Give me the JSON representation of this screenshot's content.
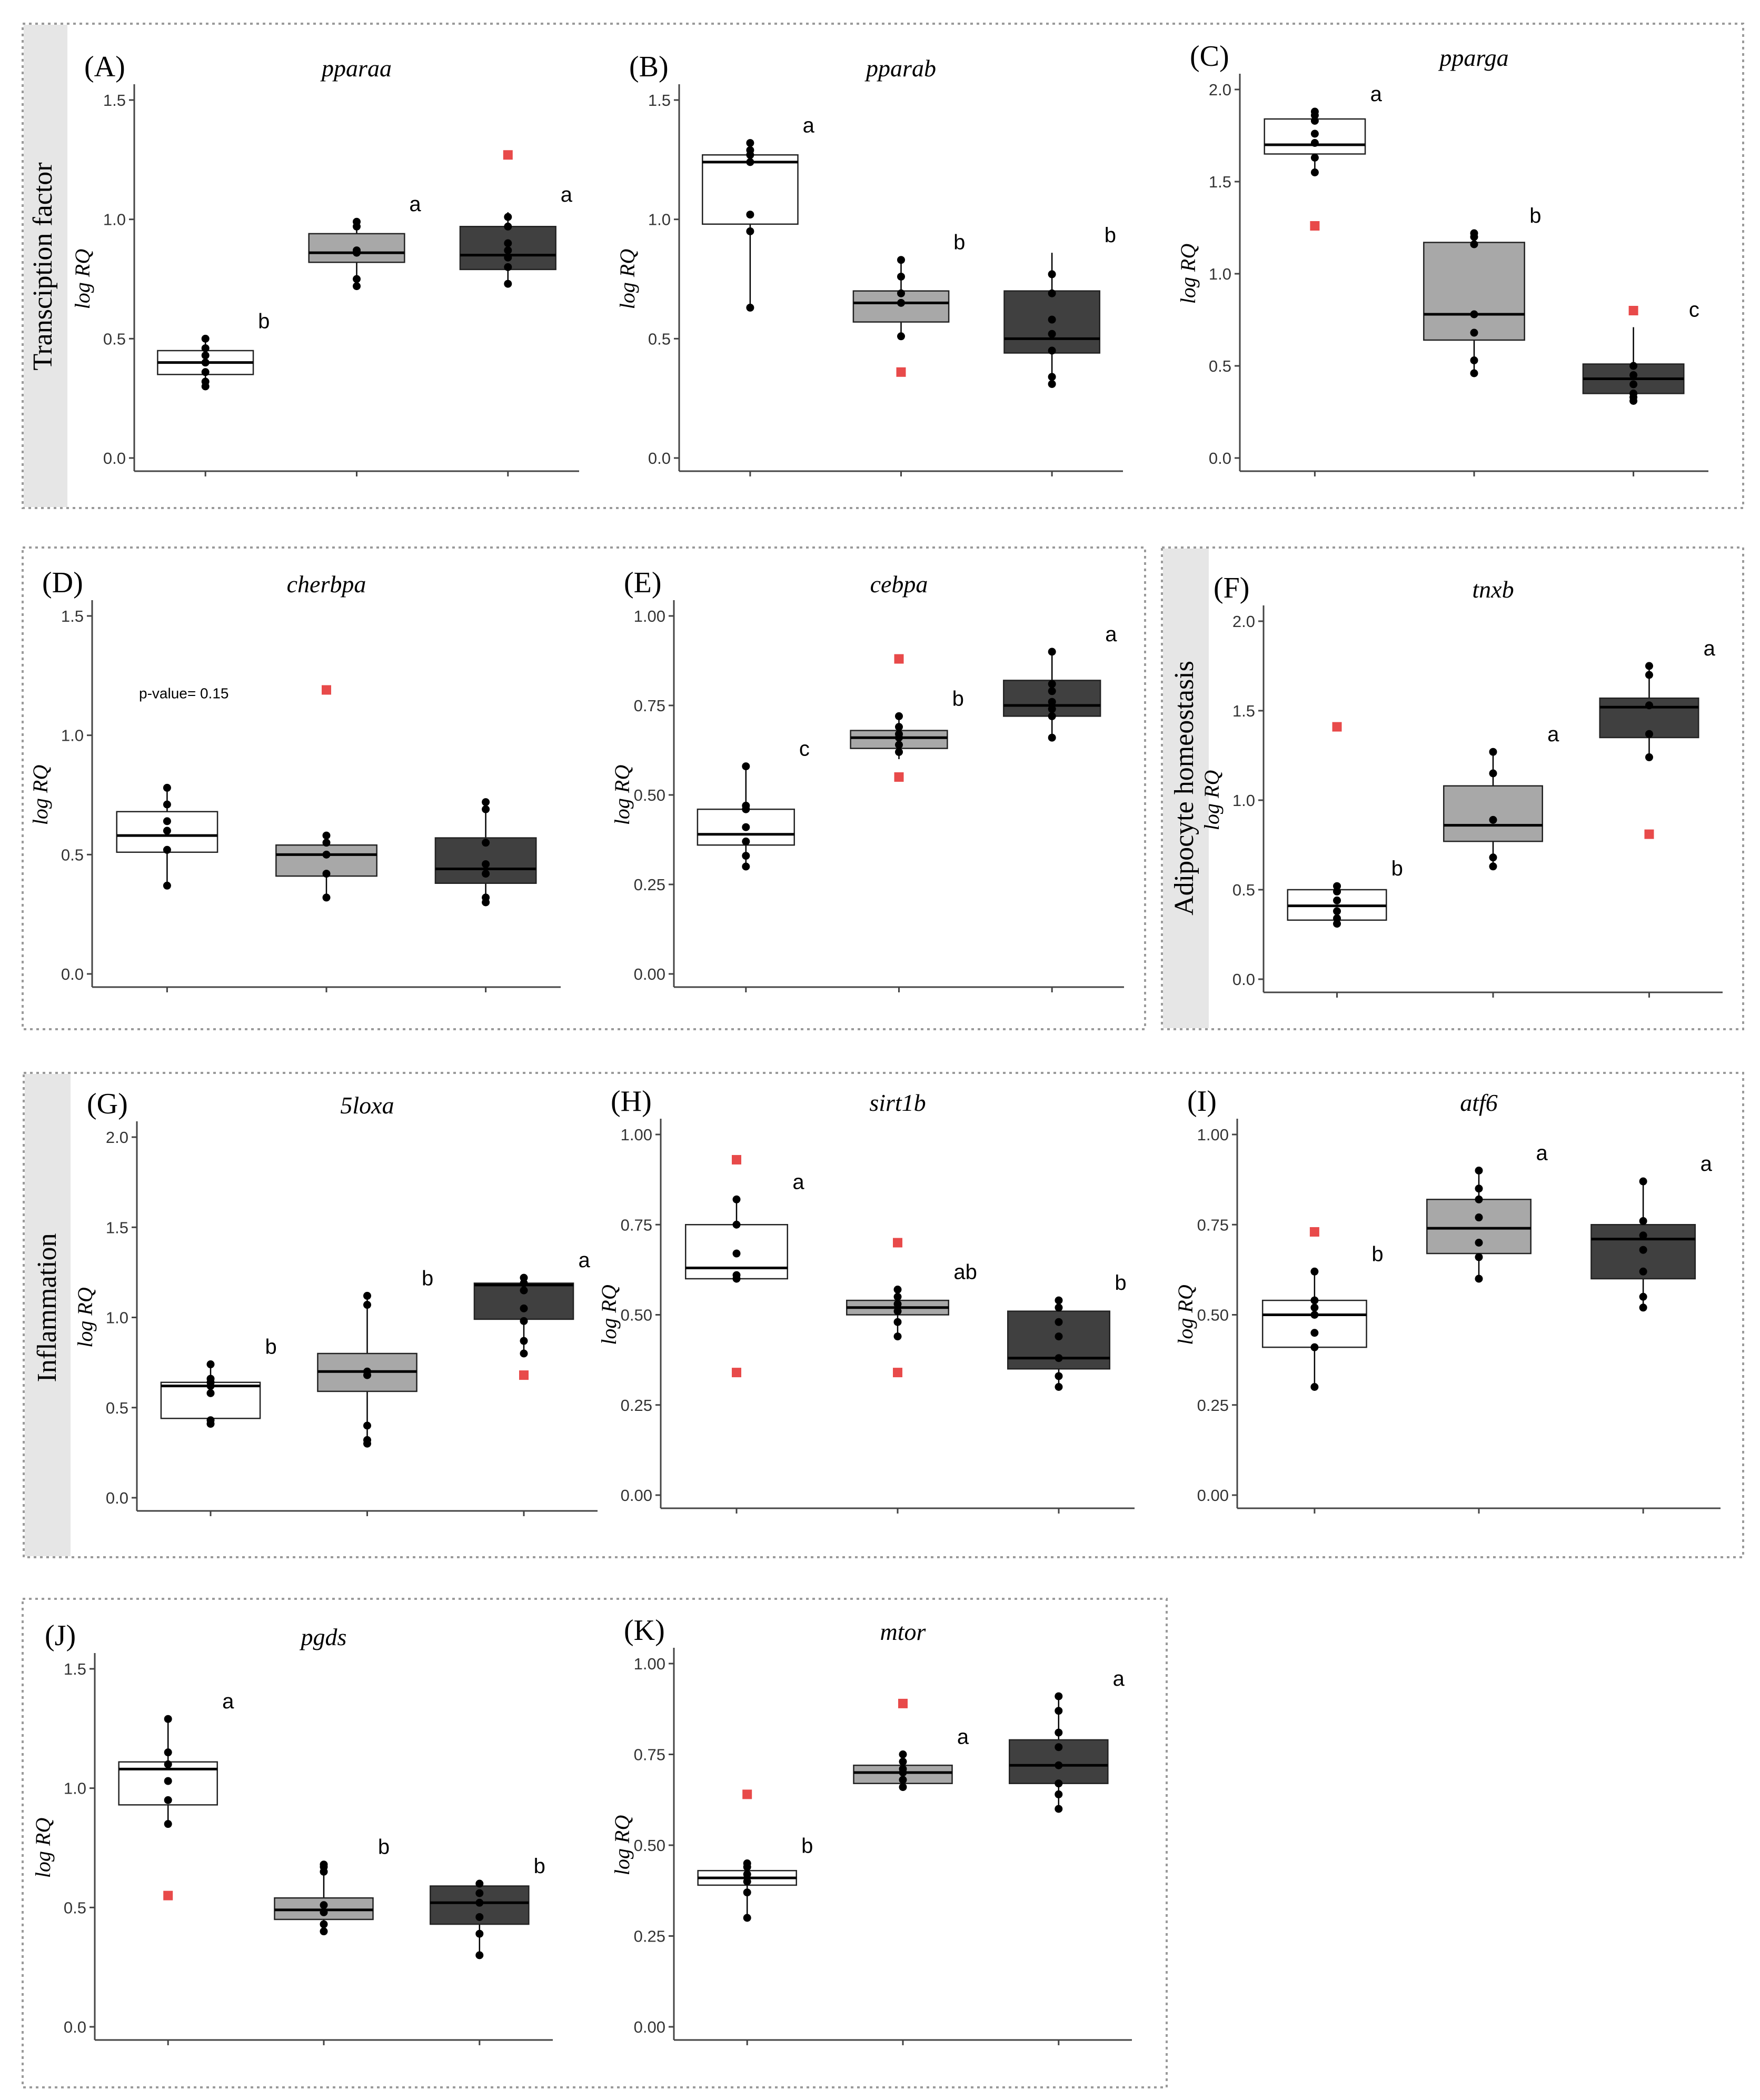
{
  "figure": {
    "groups": [
      {
        "id": "transcription",
        "label": "Transciption factor"
      },
      {
        "id": "adipocyte",
        "label": "Adipocyte homeostasis"
      },
      {
        "id": "inflammation",
        "label": "Inflammation"
      }
    ],
    "colors": {
      "box_fills": [
        "#ffffff",
        "#a8a8a8",
        "#404040"
      ],
      "outlier": "#e84a4a",
      "point": "#000000",
      "group_band": "#e6e6e6"
    }
  },
  "chart_data": [
    {
      "id": "A",
      "label": "(A)",
      "gene": "pparaa",
      "type": "boxplot",
      "ylabel": "log RQ",
      "ylim": [
        0,
        1.5
      ],
      "yticks": [
        "0.0",
        "0.5",
        "1.0",
        "1.5"
      ],
      "series": [
        {
          "q1": 0.35,
          "median": 0.4,
          "q3": 0.45,
          "wmin": 0.3,
          "wmax": 0.5,
          "points": [
            0.3,
            0.32,
            0.36,
            0.4,
            0.43,
            0.46,
            0.5
          ],
          "outliers": [],
          "letter": "b"
        },
        {
          "q1": 0.82,
          "median": 0.86,
          "q3": 0.94,
          "wmin": 0.72,
          "wmax": 0.99,
          "points": [
            0.72,
            0.75,
            0.86,
            0.87,
            0.97,
            0.99
          ],
          "outliers": [],
          "letter": "a"
        },
        {
          "q1": 0.79,
          "median": 0.85,
          "q3": 0.97,
          "wmin": 0.73,
          "wmax": 1.03,
          "points": [
            0.73,
            0.8,
            0.84,
            0.87,
            0.9,
            0.97,
            1.01
          ],
          "outliers": [
            1.27
          ],
          "letter": "a"
        }
      ]
    },
    {
      "id": "B",
      "label": "(B)",
      "gene": "pparab",
      "type": "boxplot",
      "ylabel": "log RQ",
      "ylim": [
        0,
        1.5
      ],
      "yticks": [
        "0.0",
        "0.5",
        "1.0",
        "1.5"
      ],
      "series": [
        {
          "q1": 0.98,
          "median": 1.24,
          "q3": 1.27,
          "wmin": 0.63,
          "wmax": 1.32,
          "points": [
            0.63,
            0.95,
            1.02,
            1.24,
            1.27,
            1.29,
            1.32
          ],
          "outliers": [],
          "letter": "a"
        },
        {
          "q1": 0.57,
          "median": 0.65,
          "q3": 0.7,
          "wmin": 0.51,
          "wmax": 0.83,
          "points": [
            0.51,
            0.65,
            0.69,
            0.76,
            0.83
          ],
          "outliers": [
            0.36
          ],
          "letter": "b"
        },
        {
          "q1": 0.44,
          "median": 0.5,
          "q3": 0.7,
          "wmin": 0.31,
          "wmax": 0.86,
          "points": [
            0.31,
            0.34,
            0.45,
            0.52,
            0.58,
            0.69,
            0.77
          ],
          "outliers": [],
          "letter": "b"
        }
      ]
    },
    {
      "id": "C",
      "label": "(C)",
      "gene": "pparga",
      "type": "boxplot",
      "ylabel": "log RQ",
      "ylim": [
        0,
        2.0
      ],
      "yticks": [
        "0.0",
        "0.5",
        "1.0",
        "1.5",
        "2.0"
      ],
      "series": [
        {
          "q1": 1.65,
          "median": 1.7,
          "q3": 1.84,
          "wmin": 1.55,
          "wmax": 1.88,
          "points": [
            1.55,
            1.63,
            1.71,
            1.76,
            1.83,
            1.86,
            1.88
          ],
          "outliers": [
            1.26
          ],
          "letter": "a"
        },
        {
          "q1": 0.64,
          "median": 0.78,
          "q3": 1.17,
          "wmin": 0.46,
          "wmax": 1.22,
          "points": [
            0.46,
            0.53,
            0.68,
            0.78,
            1.16,
            1.2,
            1.22
          ],
          "outliers": [],
          "letter": "b"
        },
        {
          "q1": 0.35,
          "median": 0.43,
          "q3": 0.51,
          "wmin": 0.31,
          "wmax": 0.71,
          "points": [
            0.31,
            0.33,
            0.35,
            0.4,
            0.45,
            0.5
          ],
          "outliers": [
            0.8
          ],
          "letter": "c"
        }
      ]
    },
    {
      "id": "D",
      "label": "(D)",
      "gene": "cherbpa",
      "type": "boxplot",
      "ylabel": "log RQ",
      "ylim": [
        0,
        1.5
      ],
      "yticks": [
        "0.0",
        "0.5",
        "1.0",
        "1.5"
      ],
      "annotation": "p-value= 0.15",
      "series": [
        {
          "q1": 0.51,
          "median": 0.58,
          "q3": 0.68,
          "wmin": 0.37,
          "wmax": 0.78,
          "points": [
            0.37,
            0.52,
            0.6,
            0.64,
            0.71,
            0.78
          ],
          "outliers": [],
          "letter": ""
        },
        {
          "q1": 0.41,
          "median": 0.5,
          "q3": 0.54,
          "wmin": 0.32,
          "wmax": 0.58,
          "points": [
            0.32,
            0.42,
            0.5,
            0.55,
            0.58
          ],
          "outliers": [
            1.19
          ],
          "letter": ""
        },
        {
          "q1": 0.38,
          "median": 0.44,
          "q3": 0.57,
          "wmin": 0.3,
          "wmax": 0.72,
          "points": [
            0.3,
            0.32,
            0.42,
            0.46,
            0.55,
            0.69,
            0.72
          ],
          "outliers": [],
          "letter": ""
        }
      ]
    },
    {
      "id": "E",
      "label": "(E)",
      "gene": "cebpa",
      "type": "boxplot",
      "ylabel": "log RQ",
      "ylim": [
        0,
        1.0
      ],
      "yticks": [
        "0.00",
        "0.25",
        "0.50",
        "0.75",
        "1.00"
      ],
      "series": [
        {
          "q1": 0.36,
          "median": 0.39,
          "q3": 0.46,
          "wmin": 0.3,
          "wmax": 0.58,
          "points": [
            0.3,
            0.33,
            0.37,
            0.41,
            0.46,
            0.47,
            0.58
          ],
          "outliers": [],
          "letter": "c"
        },
        {
          "q1": 0.63,
          "median": 0.66,
          "q3": 0.68,
          "wmin": 0.6,
          "wmax": 0.72,
          "points": [
            0.62,
            0.64,
            0.66,
            0.67,
            0.69,
            0.72
          ],
          "outliers": [
            0.88,
            0.55
          ],
          "letter": "b"
        },
        {
          "q1": 0.72,
          "median": 0.75,
          "q3": 0.82,
          "wmin": 0.66,
          "wmax": 0.9,
          "points": [
            0.66,
            0.72,
            0.74,
            0.76,
            0.79,
            0.81,
            0.9
          ],
          "outliers": [],
          "letter": "a"
        }
      ]
    },
    {
      "id": "F",
      "label": "(F)",
      "gene": "tnxb",
      "type": "boxplot",
      "ylabel": "log RQ",
      "ylim": [
        0,
        2.0
      ],
      "yticks": [
        "0.0",
        "0.5",
        "1.0",
        "1.5",
        "2.0"
      ],
      "series": [
        {
          "q1": 0.33,
          "median": 0.41,
          "q3": 0.5,
          "wmin": 0.31,
          "wmax": 0.52,
          "points": [
            0.31,
            0.34,
            0.38,
            0.44,
            0.49,
            0.52
          ],
          "outliers": [
            1.41
          ],
          "letter": "b"
        },
        {
          "q1": 0.77,
          "median": 0.86,
          "q3": 1.08,
          "wmin": 0.63,
          "wmax": 1.27,
          "points": [
            0.63,
            0.68,
            0.89,
            1.15,
            1.27
          ],
          "outliers": [],
          "letter": "a"
        },
        {
          "q1": 1.35,
          "median": 1.52,
          "q3": 1.57,
          "wmin": 1.24,
          "wmax": 1.75,
          "points": [
            1.24,
            1.37,
            1.53,
            1.7,
            1.75
          ],
          "outliers": [
            0.81
          ],
          "letter": "a"
        }
      ]
    },
    {
      "id": "G",
      "label": "(G)",
      "gene": "5loxa",
      "type": "boxplot",
      "ylabel": "log RQ",
      "ylim": [
        0,
        2.0
      ],
      "yticks": [
        "0.0",
        "0.5",
        "1.0",
        "1.5",
        "2.0"
      ],
      "series": [
        {
          "q1": 0.44,
          "median": 0.62,
          "q3": 0.64,
          "wmin": 0.41,
          "wmax": 0.74,
          "points": [
            0.41,
            0.43,
            0.58,
            0.62,
            0.64,
            0.66,
            0.74
          ],
          "outliers": [],
          "letter": "b"
        },
        {
          "q1": 0.59,
          "median": 0.7,
          "q3": 0.8,
          "wmin": 0.3,
          "wmax": 1.12,
          "points": [
            0.3,
            0.32,
            0.4,
            0.68,
            0.7,
            1.07,
            1.12
          ],
          "outliers": [],
          "letter": "b"
        },
        {
          "q1": 0.99,
          "median": 1.18,
          "q3": 1.19,
          "wmin": 0.8,
          "wmax": 1.22,
          "points": [
            0.8,
            0.87,
            0.98,
            1.05,
            1.15,
            1.19,
            1.22
          ],
          "outliers": [
            0.68
          ],
          "letter": "a"
        }
      ]
    },
    {
      "id": "H",
      "label": "(H)",
      "gene": "sirt1b",
      "type": "boxplot",
      "ylabel": "log RQ",
      "ylim": [
        0,
        1.0
      ],
      "yticks": [
        "0.00",
        "0.25",
        "0.50",
        "0.75",
        "1.00"
      ],
      "series": [
        {
          "q1": 0.6,
          "median": 0.63,
          "q3": 0.75,
          "wmin": 0.59,
          "wmax": 0.82,
          "points": [
            0.6,
            0.61,
            0.67,
            0.75,
            0.82
          ],
          "outliers": [
            0.93,
            0.34
          ],
          "letter": "a"
        },
        {
          "q1": 0.5,
          "median": 0.52,
          "q3": 0.54,
          "wmin": 0.44,
          "wmax": 0.57,
          "points": [
            0.44,
            0.48,
            0.51,
            0.53,
            0.55,
            0.57
          ],
          "outliers": [
            0.7,
            0.34
          ],
          "letter": "ab"
        },
        {
          "q1": 0.35,
          "median": 0.38,
          "q3": 0.51,
          "wmin": 0.3,
          "wmax": 0.54,
          "points": [
            0.3,
            0.33,
            0.38,
            0.44,
            0.48,
            0.52,
            0.54
          ],
          "outliers": [],
          "letter": "b"
        }
      ]
    },
    {
      "id": "I",
      "label": "(I)",
      "gene": "atf6",
      "type": "boxplot",
      "ylabel": "log RQ",
      "ylim": [
        0,
        1.0
      ],
      "yticks": [
        "0.00",
        "0.25",
        "0.50",
        "0.75",
        "1.00"
      ],
      "series": [
        {
          "q1": 0.41,
          "median": 0.5,
          "q3": 0.54,
          "wmin": 0.3,
          "wmax": 0.62,
          "points": [
            0.3,
            0.41,
            0.45,
            0.5,
            0.52,
            0.54,
            0.62
          ],
          "outliers": [
            0.73
          ],
          "letter": "b"
        },
        {
          "q1": 0.67,
          "median": 0.74,
          "q3": 0.82,
          "wmin": 0.6,
          "wmax": 0.9,
          "points": [
            0.6,
            0.66,
            0.7,
            0.77,
            0.82,
            0.85,
            0.9
          ],
          "outliers": [],
          "letter": "a"
        },
        {
          "q1": 0.6,
          "median": 0.71,
          "q3": 0.75,
          "wmin": 0.52,
          "wmax": 0.87,
          "points": [
            0.52,
            0.55,
            0.62,
            0.68,
            0.72,
            0.76,
            0.87
          ],
          "outliers": [],
          "letter": "a"
        }
      ]
    },
    {
      "id": "J",
      "label": "(J)",
      "gene": "pgds",
      "type": "boxplot",
      "ylabel": "log RQ",
      "ylim": [
        0,
        1.5
      ],
      "yticks": [
        "0.0",
        "0.5",
        "1.0",
        "1.5"
      ],
      "series": [
        {
          "q1": 0.93,
          "median": 1.08,
          "q3": 1.11,
          "wmin": 0.85,
          "wmax": 1.29,
          "points": [
            0.85,
            0.95,
            1.03,
            1.1,
            1.15,
            1.29
          ],
          "outliers": [
            0.55
          ],
          "letter": "a"
        },
        {
          "q1": 0.45,
          "median": 0.49,
          "q3": 0.54,
          "wmin": 0.4,
          "wmax": 0.68,
          "points": [
            0.4,
            0.43,
            0.48,
            0.51,
            0.65,
            0.67,
            0.68
          ],
          "outliers": [],
          "letter": "b"
        },
        {
          "q1": 0.43,
          "median": 0.52,
          "q3": 0.59,
          "wmin": 0.3,
          "wmax": 0.6,
          "points": [
            0.3,
            0.39,
            0.46,
            0.52,
            0.56,
            0.6
          ],
          "outliers": [],
          "letter": "b"
        }
      ]
    },
    {
      "id": "K",
      "label": "(K)",
      "gene": "mtor",
      "type": "boxplot",
      "ylabel": "log RQ",
      "ylim": [
        0,
        1.0
      ],
      "yticks": [
        "0.00",
        "0.25",
        "0.50",
        "0.75",
        "1.00"
      ],
      "series": [
        {
          "q1": 0.39,
          "median": 0.41,
          "q3": 0.43,
          "wmin": 0.3,
          "wmax": 0.45,
          "points": [
            0.3,
            0.37,
            0.4,
            0.42,
            0.44,
            0.45
          ],
          "outliers": [
            0.64
          ],
          "letter": "b"
        },
        {
          "q1": 0.67,
          "median": 0.7,
          "q3": 0.72,
          "wmin": 0.66,
          "wmax": 0.75,
          "points": [
            0.66,
            0.68,
            0.7,
            0.71,
            0.73,
            0.75
          ],
          "outliers": [
            0.89
          ],
          "letter": "a"
        },
        {
          "q1": 0.67,
          "median": 0.72,
          "q3": 0.79,
          "wmin": 0.6,
          "wmax": 0.91,
          "points": [
            0.6,
            0.64,
            0.67,
            0.72,
            0.77,
            0.81,
            0.87,
            0.91
          ],
          "outliers": [],
          "letter": "a"
        }
      ]
    }
  ]
}
